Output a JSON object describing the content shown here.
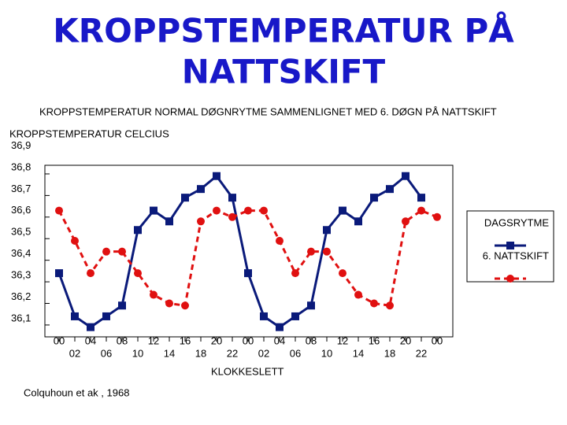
{
  "chart_data": {
    "type": "line",
    "title": [
      "KROPPSTEMPERATUR PÅ",
      "NATTSKIFT"
    ],
    "subtitle": "KROPPSTEMPERATUR  NORMAL DØGNRYTME SAMMENLIGNET MED 6. DØGN PÅ NATTSKIFT",
    "y_label": "KROPPSTEMPERATUR CELCIUS",
    "x_label": "KLOKKESLETT",
    "source": "Colquhoun et ak , 1968",
    "categories": [
      "00",
      "02",
      "04",
      "06",
      "08",
      "10",
      "12",
      "14",
      "16",
      "18",
      "20",
      "22",
      "00",
      "02",
      "04",
      "06",
      "08",
      "10",
      "12",
      "14",
      "16",
      "18",
      "20",
      "22",
      "00"
    ],
    "series": [
      {
        "name": "DAGSRYTME",
        "color": "#0a1a7a",
        "marker": "square",
        "linestyle": "solid",
        "values": [
          36.34,
          36.14,
          36.09,
          36.14,
          36.19,
          36.54,
          36.63,
          36.58,
          36.69,
          36.73,
          36.79,
          36.69,
          36.34,
          36.14,
          36.09,
          36.14,
          36.19,
          36.54,
          36.63,
          36.58,
          36.69,
          36.73,
          36.79,
          36.69,
          null
        ]
      },
      {
        "name": "6. NATTSKIFT",
        "color": "#e01010",
        "marker": "circle",
        "linestyle": "dashed",
        "values": [
          36.63,
          36.49,
          36.34,
          36.44,
          36.44,
          36.34,
          36.24,
          36.2,
          36.19,
          36.58,
          36.63,
          36.6,
          36.63,
          36.63,
          36.49,
          36.34,
          36.44,
          36.44,
          36.34,
          36.24,
          36.2,
          36.19,
          36.58,
          36.63,
          36.6
        ]
      }
    ],
    "ylim": [
      36.045,
      36.84
    ],
    "yticks": [
      {
        "value": 36.9,
        "label": "36,9"
      },
      {
        "value": 36.8,
        "label": "36,8"
      },
      {
        "value": 36.7,
        "label": "36,7"
      },
      {
        "value": 36.6,
        "label": "36,6"
      },
      {
        "value": 36.5,
        "label": "36,5"
      },
      {
        "value": 36.4,
        "label": "36,4"
      },
      {
        "value": 36.3,
        "label": "36,3"
      },
      {
        "value": 36.2,
        "label": "36,2"
      },
      {
        "value": 36.1,
        "label": "36,1"
      }
    ],
    "legend": "right"
  }
}
